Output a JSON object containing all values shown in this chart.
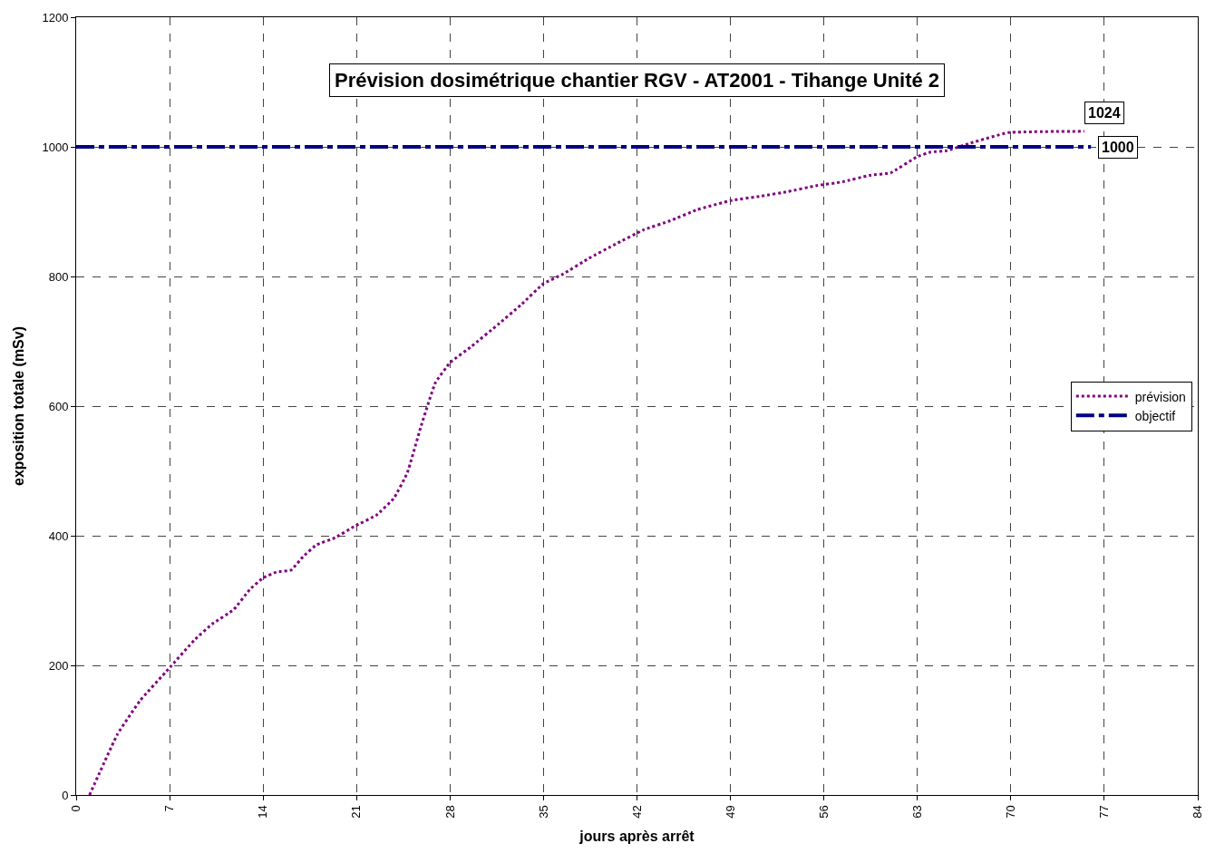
{
  "chart_data": {
    "type": "line",
    "title": "Prévision dosimétrique chantier RGV - AT2001 - Tihange Unité 2",
    "xlabel": "jours après arrêt",
    "ylabel": "exposition totale (mSv)",
    "series": [
      {
        "name": "prévision",
        "color": "#800080",
        "line_style": "dotted",
        "x": [
          1,
          3.1,
          4.8,
          6.9,
          8.9,
          10.2,
          11.8,
          13,
          14,
          15,
          16.1,
          17,
          18,
          19.4,
          20.8,
          22.5,
          23.8,
          24.8,
          25.8,
          26.9,
          28,
          29.6,
          31.6,
          33.3,
          35,
          36.4,
          38.4,
          40.4,
          42.5,
          44.5,
          46.5,
          49,
          51.3,
          53.3,
          55.4,
          57.4,
          59.4,
          61,
          63,
          64,
          65.2,
          67,
          69.8,
          75.5
        ],
        "values": [
          0,
          94,
          146,
          194,
          240,
          264,
          286,
          317,
          335,
          344,
          347,
          368,
          386,
          397,
          414,
          432,
          458,
          497,
          567,
          636,
          667,
          692,
          726,
          756,
          789,
          803,
          828,
          850,
          872,
          886,
          903,
          917,
          924,
          931,
          940,
          946,
          956,
          960,
          985,
          992,
          994,
          1006,
          1022,
          1024
        ]
      },
      {
        "name": "objectif",
        "color": "#000080",
        "line_style": "dashdot",
        "x": [
          0,
          76
        ],
        "values": [
          1000,
          1000
        ]
      }
    ],
    "xlim": [
      0,
      84
    ],
    "xticks": [
      0,
      7,
      14,
      21,
      28,
      35,
      42,
      49,
      56,
      63,
      70,
      77,
      84
    ],
    "ylim": [
      0,
      1200
    ],
    "yticks": [
      0,
      200,
      400,
      600,
      800,
      1000,
      1200
    ],
    "grid": true,
    "legend": "right",
    "annotations": [
      {
        "text": "1024",
        "x": 75.5,
        "y": 1024
      },
      {
        "text": "1000",
        "x": 76,
        "y": 1000
      }
    ]
  }
}
